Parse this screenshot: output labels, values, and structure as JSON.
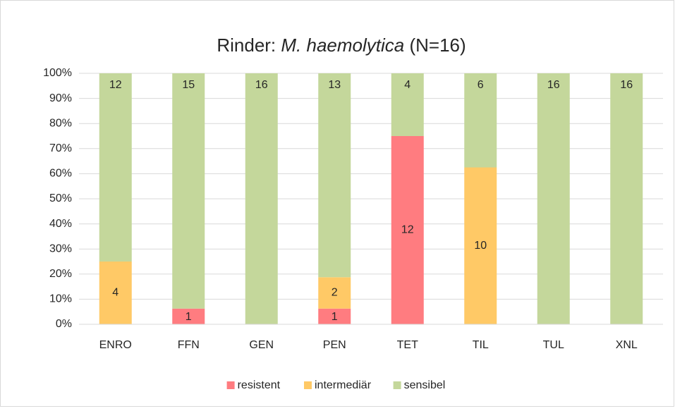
{
  "chart_data": {
    "type": "bar",
    "stacked": "percent",
    "title": [
      {
        "text": "Rinder: "
      },
      {
        "text": "M. haemolytica",
        "italic": true
      },
      {
        "text": " (N=16)"
      }
    ],
    "categories": [
      "ENRO",
      "FFN",
      "GEN",
      "PEN",
      "TET",
      "TIL",
      "TUL",
      "XNL"
    ],
    "series": [
      {
        "name": "resistent",
        "color": "#ff7c80",
        "values": [
          0,
          1,
          0,
          1,
          12,
          0,
          0,
          0
        ]
      },
      {
        "name": "intermediär",
        "color": "#ffc966",
        "values": [
          4,
          0,
          0,
          2,
          0,
          10,
          0,
          0
        ]
      },
      {
        "name": "sensibel",
        "color": "#c4d79b",
        "values": [
          12,
          15,
          16,
          13,
          4,
          6,
          16,
          16
        ]
      }
    ],
    "ylim": [
      0,
      100
    ],
    "yticks": [
      {
        "value": 0,
        "label": "0%"
      },
      {
        "value": 10,
        "label": "10%"
      },
      {
        "value": 20,
        "label": "20%"
      },
      {
        "value": 30,
        "label": "30%"
      },
      {
        "value": 40,
        "label": "40%"
      },
      {
        "value": 50,
        "label": "50%"
      },
      {
        "value": 60,
        "label": "60%"
      },
      {
        "value": 70,
        "label": "70%"
      },
      {
        "value": 80,
        "label": "80%"
      },
      {
        "value": 90,
        "label": "90%"
      },
      {
        "value": 100,
        "label": "100%"
      }
    ],
    "grid": true,
    "legend": "bottom"
  }
}
